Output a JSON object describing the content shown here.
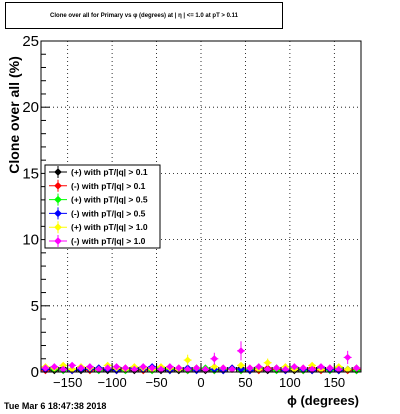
{
  "chart_data": {
    "type": "scatter",
    "title": "Clone  over all for Primary vs φ (degrees) at | η | <= 1.0 at pT > 0.11",
    "xlabel": "ϕ (degrees)",
    "ylabel": "Clone  over all (%)",
    "xlim": [
      -180,
      180
    ],
    "ylim": [
      0,
      25
    ],
    "x_ticks": [
      -150,
      -100,
      -50,
      0,
      50,
      100,
      150
    ],
    "x_tick_labels": [
      "−150",
      "−100",
      "−50",
      "0",
      "50",
      "100",
      "150"
    ],
    "y_ticks": [
      0,
      5,
      10,
      15,
      20,
      25
    ],
    "y_tick_labels": [
      "0",
      "5",
      "10",
      "15",
      "20",
      "25"
    ],
    "grid": true,
    "legend_position": "left-middle",
    "series": [
      {
        "name": "(+) with pT/|q| > 0.1",
        "color": "#000000",
        "x": [
          -175,
          -165,
          -155,
          -145,
          -135,
          -125,
          -115,
          -105,
          -95,
          -85,
          -75,
          -65,
          -55,
          -45,
          -35,
          -25,
          -15,
          -5,
          5,
          15,
          25,
          35,
          45,
          55,
          65,
          75,
          85,
          95,
          105,
          115,
          125,
          135,
          145,
          155,
          165,
          175
        ],
        "y": [
          0.2,
          0.1,
          0.3,
          0.2,
          0.1,
          0.2,
          0.3,
          0.1,
          0.2,
          0.2,
          0.1,
          0.3,
          0.2,
          0.1,
          0.2,
          0.1,
          0.2,
          0.3,
          0.1,
          0.2,
          0.1,
          0.2,
          0.3,
          0.1,
          0.2,
          0.1,
          0.3,
          0.2,
          0.1,
          0.2,
          0.1,
          0.2,
          0.3,
          0.1,
          0.2,
          0.1
        ]
      },
      {
        "name": "(-) with pT/|q| > 0.1",
        "color": "#ff0000",
        "x": [
          -175,
          -165,
          -155,
          -145,
          -135,
          -125,
          -115,
          -105,
          -95,
          -85,
          -75,
          -65,
          -55,
          -45,
          -35,
          -25,
          -15,
          -5,
          5,
          15,
          25,
          35,
          45,
          55,
          65,
          75,
          85,
          95,
          105,
          115,
          125,
          135,
          145,
          155,
          165,
          175
        ],
        "y": [
          0.1,
          0.2,
          0.2,
          0.1,
          0.3,
          0.1,
          0.2,
          0.2,
          0.1,
          0.3,
          0.2,
          0.1,
          0.2,
          0.2,
          0.1,
          0.3,
          0.1,
          0.2,
          0.2,
          0.1,
          0.2,
          0.3,
          0.1,
          0.2,
          0.1,
          0.3,
          0.2,
          0.1,
          0.2,
          0.1,
          0.3,
          0.1,
          0.2,
          0.2,
          0.1,
          0.2
        ]
      },
      {
        "name": "(+) with pT/|q| > 0.5",
        "color": "#00ff00",
        "x": [
          -175,
          -165,
          -155,
          -145,
          -135,
          -125,
          -115,
          -105,
          -95,
          -85,
          -75,
          -65,
          -55,
          -45,
          -35,
          -25,
          -15,
          -5,
          5,
          15,
          25,
          35,
          45,
          55,
          65,
          75,
          85,
          95,
          105,
          115,
          125,
          135,
          145,
          155,
          165,
          175
        ],
        "y": [
          0.3,
          0.2,
          0.1,
          0.2,
          0.2,
          0.3,
          0.1,
          0.2,
          0.3,
          0.1,
          0.2,
          0.2,
          0.1,
          0.3,
          0.2,
          0.2,
          0.1,
          0.2,
          0.3,
          0.1,
          0.2,
          0.2,
          0.1,
          0.2,
          0.3,
          0.2,
          0.1,
          0.2,
          0.3,
          0.1,
          0.2,
          0.2,
          0.1,
          0.3,
          0.2,
          0.1
        ]
      },
      {
        "name": "(-) with pT/|q| > 0.5",
        "color": "#0000ff",
        "x": [
          -175,
          -165,
          -155,
          -145,
          -135,
          -125,
          -115,
          -105,
          -95,
          -85,
          -75,
          -65,
          -55,
          -45,
          -35,
          -25,
          -15,
          -5,
          5,
          15,
          25,
          35,
          45,
          55,
          65,
          75,
          85,
          95,
          105,
          115,
          125,
          135,
          145,
          155,
          165,
          175
        ],
        "y": [
          0.2,
          0.3,
          0.2,
          0.1,
          0.2,
          0.2,
          0.3,
          0.2,
          0.1,
          0.2,
          0.3,
          0.2,
          0.4,
          0.2,
          0.1,
          0.2,
          0.3,
          0.1,
          0.2,
          0.2,
          0.1,
          0.3,
          0.2,
          0.1,
          0.2,
          0.2,
          0.3,
          0.1,
          0.2,
          0.2,
          0.1,
          0.3,
          0.2,
          0.1,
          0.2,
          0.3
        ]
      },
      {
        "name": "(+) with pT/|q| > 1.0",
        "color": "#ffff00",
        "x": [
          -175,
          -165,
          -155,
          -145,
          -135,
          -125,
          -115,
          -105,
          -95,
          -85,
          -75,
          -65,
          -55,
          -45,
          -35,
          -25,
          -15,
          -5,
          5,
          15,
          25,
          35,
          45,
          55,
          65,
          75,
          85,
          95,
          105,
          115,
          125,
          135,
          145,
          155,
          165,
          175
        ],
        "y": [
          0.4,
          0.3,
          0.5,
          0.2,
          0.4,
          0.3,
          0.2,
          0.5,
          0.3,
          0.2,
          0.4,
          0.3,
          0.2,
          0.4,
          0.3,
          0.2,
          0.9,
          0.3,
          0.2,
          0.4,
          0.3,
          0.2,
          0.5,
          0.3,
          0.2,
          0.7,
          0.3,
          0.4,
          0.2,
          0.3,
          0.5,
          0.2,
          0.3,
          0.4,
          0.2,
          0.3
        ]
      },
      {
        "name": "(-) with pT/|q| > 1.0",
        "color": "#ff00ff",
        "x": [
          -175,
          -165,
          -155,
          -145,
          -135,
          -125,
          -115,
          -105,
          -95,
          -85,
          -75,
          -65,
          -55,
          -45,
          -35,
          -25,
          -15,
          -5,
          5,
          15,
          25,
          35,
          45,
          55,
          65,
          75,
          85,
          95,
          105,
          115,
          125,
          135,
          145,
          155,
          165,
          175
        ],
        "y": [
          0.3,
          0.4,
          0.2,
          0.5,
          0.3,
          0.4,
          0.2,
          0.3,
          0.4,
          0.3,
          0.2,
          0.4,
          0.3,
          0.2,
          0.4,
          0.3,
          0.2,
          0.3,
          0.2,
          1.0,
          0.3,
          0.2,
          1.6,
          0.3,
          0.4,
          0.2,
          0.3,
          0.2,
          0.4,
          0.3,
          0.2,
          0.4,
          0.3,
          0.2,
          1.1,
          0.3
        ]
      }
    ]
  },
  "footer": {
    "timestamp": "Tue Mar  6 18:47:38 2018"
  }
}
